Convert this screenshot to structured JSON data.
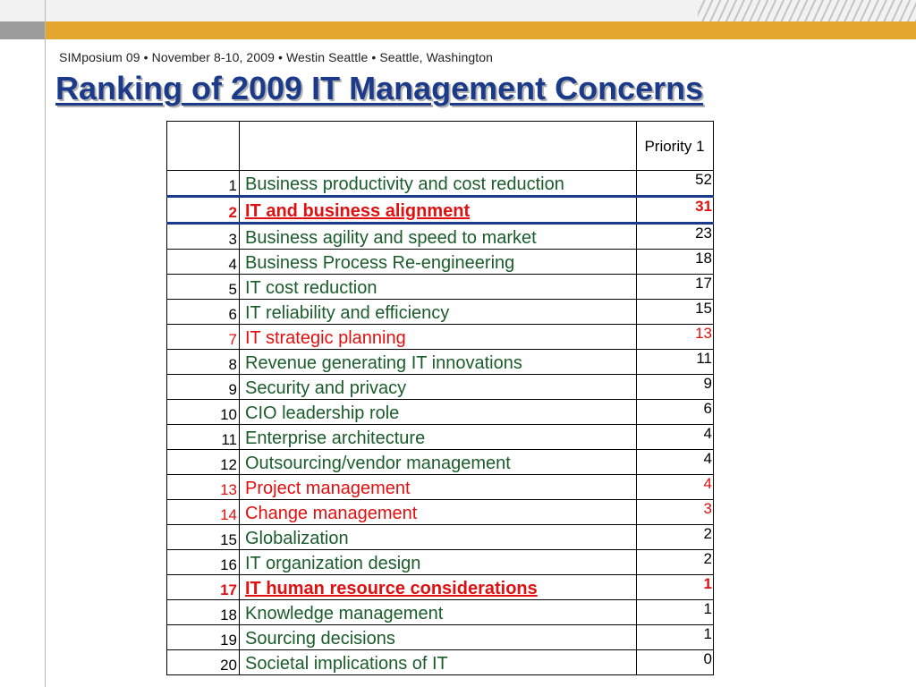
{
  "header": {
    "conference_line": "SIMposium 09 • November 8-10, 2009 • Westin Seattle • Seattle, Washington",
    "title": "Ranking of 2009 IT Management Concerns"
  },
  "table": {
    "header": {
      "col1": "",
      "col2": "",
      "col3": "Priority 1"
    },
    "rows": [
      {
        "rank": "1",
        "label": "Business productivity and cost reduction",
        "value": "52"
      },
      {
        "rank": "2",
        "label": "IT and business alignment",
        "value": "31"
      },
      {
        "rank": "3",
        "label": "Business agility and speed to market",
        "value": "23"
      },
      {
        "rank": "4",
        "label": "Business Process Re-engineering",
        "value": "18"
      },
      {
        "rank": "5",
        "label": "IT cost reduction",
        "value": "17"
      },
      {
        "rank": "6",
        "label": "IT reliability and efficiency",
        "value": "15"
      },
      {
        "rank": "7",
        "label": "IT strategic planning",
        "value": "13"
      },
      {
        "rank": "8",
        "label": "Revenue generating IT innovations",
        "value": "11"
      },
      {
        "rank": "9",
        "label": "Security and privacy",
        "value": "9"
      },
      {
        "rank": "10",
        "label": "CIO leadership role",
        "value": "6"
      },
      {
        "rank": "11",
        "label": "Enterprise architecture",
        "value": "4"
      },
      {
        "rank": "12",
        "label": "Outsourcing/vendor management",
        "value": "4"
      },
      {
        "rank": "13",
        "label": "Project management",
        "value": "4"
      },
      {
        "rank": "14",
        "label": "Change management",
        "value": "3"
      },
      {
        "rank": "15",
        "label": "Globalization",
        "value": "2"
      },
      {
        "rank": "16",
        "label": "IT organization design",
        "value": "2"
      },
      {
        "rank": "17",
        "label": "IT human resource considerations",
        "value": "1"
      },
      {
        "rank": "18",
        "label": "Knowledge management",
        "value": "1"
      },
      {
        "rank": "19",
        "label": "Sourcing decisions",
        "value": "1"
      },
      {
        "rank": "20",
        "label": "Societal implications of IT",
        "value": "0"
      }
    ]
  },
  "colors": {
    "title": "#1b3a8a",
    "label_default": "#1a5c2a",
    "highlight": "#e01010",
    "accent_bar": "#e2a72c"
  }
}
